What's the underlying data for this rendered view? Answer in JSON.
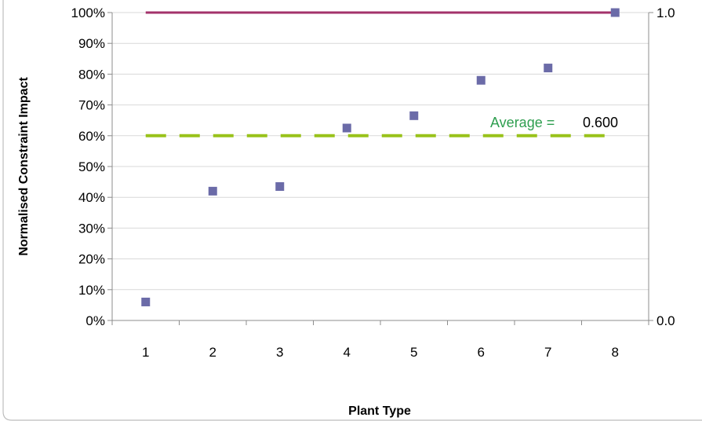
{
  "chart_data": {
    "type": "scatter",
    "title": "",
    "xlabel": "Plant Type",
    "ylabel": "Normalised Constraint Impact",
    "x_categories": [
      "1",
      "2",
      "3",
      "4",
      "5",
      "6",
      "7",
      "8"
    ],
    "ylim": [
      0,
      1
    ],
    "y_ticks": [
      "0%",
      "10%",
      "20%",
      "30%",
      "40%",
      "50%",
      "60%",
      "70%",
      "80%",
      "90%",
      "100%"
    ],
    "y2_ticks": [
      "0.0",
      "1.0"
    ],
    "grid": true,
    "series": [
      {
        "values": [
          0.06,
          0.42,
          0.435,
          0.625,
          0.665,
          0.78,
          0.82,
          1.0
        ],
        "color": "#6b6ba8",
        "marker": "square"
      }
    ],
    "reference_lines": [
      {
        "y": 1.0,
        "color": "#a3336b",
        "style": "solid"
      },
      {
        "y": 0.6,
        "color": "#99c21a",
        "style": "dashed"
      }
    ],
    "annotation": {
      "label": "Average =",
      "value": "0.600",
      "label_color": "#2e9e4f",
      "value_color": "#000000"
    }
  }
}
